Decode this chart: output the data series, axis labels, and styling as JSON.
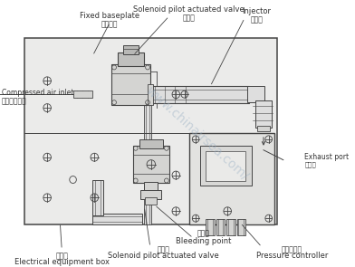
{
  "bg": "white",
  "plate_fc": "#ebebea",
  "plate_ec": "#444444",
  "component_fc": "#d4d4d2",
  "component_ec": "#444444",
  "pipe_fc": "#dedede",
  "pipe_ec": "#555555",
  "lc": "#444444",
  "tc": "#333333",
  "lw_main": 1.0,
  "lw_med": 0.7,
  "lw_thin": 0.5,
  "labels": {
    "fixed_baseplate_en": "Fixed baseplate",
    "fixed_baseplate_cn": "固定底板",
    "solenoid_top_en": "Solenoid pilot actuated valve",
    "solenoid_top_cn": "电磁阀",
    "injector_en": "Injector",
    "injector_cn": "喷射器",
    "compressed_air_en": "Compressed air inlet",
    "compressed_air_cn": "压缩空气入口",
    "exhaust_port_en": "Exhaust port",
    "exhaust_port_cn": "排气孔",
    "electrical_box_en": "Electrical equipment box",
    "electrical_box_cn": "电器盒",
    "solenoid_bot_en": "Solenoid pilot actuated valve",
    "solenoid_bot_cn": "电磁阀",
    "bleeding_point_en": "Bleeding point",
    "bleeding_point_cn": "抖气孔",
    "pressure_ctrl_en": "Pressure controller",
    "pressure_ctrl_cn": "压力控制器"
  },
  "watermark": "www.chinairsea.com/"
}
